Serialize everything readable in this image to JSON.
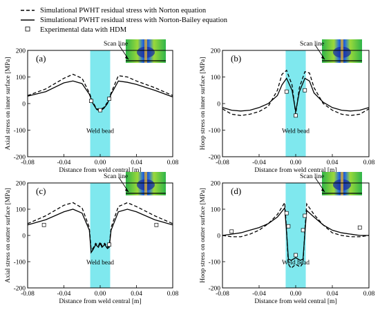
{
  "legend": [
    {
      "label": "Simulational PWHT residual stress with Norton equation",
      "style": "dashed"
    },
    {
      "label": "Simulational PWHT residual stress with Norton-Bailey equation",
      "style": "solid"
    },
    {
      "label": "Experimental data with HDM",
      "style": "marker"
    }
  ],
  "colors": {
    "weld_band": "#7fe8ee",
    "line": "#000000"
  },
  "chart_data": [
    {
      "type": "line",
      "panel": "(a)",
      "xlabel": "Distance from weld central [m]",
      "ylabel": "Axial stress on inner surface [MPa]",
      "xlim": [
        -0.08,
        0.08
      ],
      "ylim": [
        -200,
        200
      ],
      "xticks": [
        "-0.08",
        "-0.04",
        "0.00",
        "0.04",
        "0.08"
      ],
      "yticks": [
        "-200",
        "-100",
        "0",
        "100",
        "200"
      ],
      "weld_band": [
        -0.011,
        0.011
      ],
      "annotations": {
        "band": "Weld bead",
        "inset": "Scan line"
      },
      "series": [
        {
          "style": "dashed",
          "x": [
            -0.08,
            -0.06,
            -0.04,
            -0.03,
            -0.02,
            -0.012,
            -0.008,
            -0.004,
            0.0,
            0.004,
            0.008,
            0.012,
            0.02,
            0.03,
            0.04,
            0.06,
            0.08
          ],
          "y": [
            30,
            55,
            95,
            110,
            95,
            40,
            5,
            -20,
            -22,
            -15,
            5,
            40,
            105,
            100,
            85,
            60,
            30
          ]
        },
        {
          "style": "solid",
          "x": [
            -0.08,
            -0.06,
            -0.04,
            -0.03,
            -0.02,
            -0.012,
            -0.008,
            -0.004,
            0.0,
            0.004,
            0.008,
            0.012,
            0.02,
            0.03,
            0.04,
            0.06,
            0.08
          ],
          "y": [
            28,
            45,
            78,
            85,
            75,
            35,
            0,
            -22,
            -28,
            -18,
            0,
            35,
            85,
            80,
            72,
            50,
            25
          ]
        }
      ],
      "points": {
        "x": [
          -0.01,
          0.0,
          0.01
        ],
        "y": [
          10,
          -25,
          18
        ]
      }
    },
    {
      "type": "line",
      "panel": "(b)",
      "xlabel": "Distance from weld central [m]",
      "ylabel": "Hoop stress on inner surface [MPa]",
      "xlim": [
        -0.08,
        0.08
      ],
      "ylim": [
        -200,
        200
      ],
      "xticks": [
        "-0.08",
        "-0.04",
        "0.00",
        "0.04",
        "0.08"
      ],
      "yticks": [
        "-200",
        "-100",
        "0",
        "100",
        "200"
      ],
      "weld_band": [
        -0.011,
        0.011
      ],
      "annotations": {
        "band": "Weld bead",
        "inset": "Scan line"
      },
      "series": [
        {
          "style": "dashed",
          "x": [
            -0.08,
            -0.07,
            -0.06,
            -0.05,
            -0.04,
            -0.03,
            -0.02,
            -0.015,
            -0.01,
            -0.004,
            0.0,
            0.004,
            0.01,
            0.015,
            0.02,
            0.03,
            0.04,
            0.05,
            0.06,
            0.07,
            0.08
          ],
          "y": [
            -20,
            -40,
            -45,
            -40,
            -30,
            -10,
            50,
            110,
            125,
            70,
            -40,
            60,
            120,
            115,
            60,
            0,
            -25,
            -40,
            -45,
            -40,
            -20
          ]
        },
        {
          "style": "solid",
          "x": [
            -0.08,
            -0.07,
            -0.06,
            -0.05,
            -0.04,
            -0.03,
            -0.02,
            -0.015,
            -0.01,
            -0.004,
            0.0,
            0.004,
            0.01,
            0.015,
            0.02,
            0.03,
            0.04,
            0.05,
            0.06,
            0.07,
            0.08
          ],
          "y": [
            -15,
            -25,
            -28,
            -25,
            -15,
            0,
            30,
            70,
            95,
            50,
            -30,
            45,
            95,
            85,
            40,
            5,
            -15,
            -25,
            -28,
            -25,
            -15
          ]
        }
      ],
      "points": {
        "x": [
          -0.01,
          0.0,
          0.01
        ],
        "y": [
          45,
          -45,
          50
        ]
      }
    },
    {
      "type": "line",
      "panel": "(c)",
      "xlabel": "Distance from weld central [m]",
      "ylabel": "Axial stress on outter surface [MPa]",
      "xlim": [
        -0.08,
        0.08
      ],
      "ylim": [
        -200,
        200
      ],
      "xticks": [
        "-0.08",
        "-0.04",
        "0.00",
        "0.04",
        "0.08"
      ],
      "yticks": [
        "-200",
        "-100",
        "0",
        "100",
        "200"
      ],
      "weld_band": [
        -0.011,
        0.011
      ],
      "annotations": {
        "band": "Weld bead",
        "inset": "Scan line"
      },
      "series": [
        {
          "style": "dashed",
          "x": [
            -0.08,
            -0.06,
            -0.04,
            -0.03,
            -0.02,
            -0.012,
            -0.01,
            -0.008,
            -0.005,
            -0.002,
            0.0,
            0.002,
            0.005,
            0.008,
            0.01,
            0.012,
            0.02,
            0.03,
            0.04,
            0.06,
            0.08
          ],
          "y": [
            45,
            75,
            115,
            125,
            105,
            30,
            -55,
            -50,
            -30,
            -40,
            -25,
            -40,
            -30,
            -45,
            -40,
            30,
            110,
            125,
            110,
            75,
            45
          ]
        },
        {
          "style": "solid",
          "x": [
            -0.08,
            -0.06,
            -0.04,
            -0.03,
            -0.02,
            -0.012,
            -0.01,
            -0.008,
            -0.005,
            -0.002,
            0.0,
            0.002,
            0.005,
            0.008,
            0.01,
            0.012,
            0.02,
            0.03,
            0.04,
            0.06,
            0.08
          ],
          "y": [
            40,
            60,
            90,
            100,
            85,
            20,
            -65,
            -55,
            -35,
            -45,
            -30,
            -45,
            -35,
            -50,
            -45,
            20,
            90,
            100,
            90,
            60,
            40
          ]
        }
      ],
      "points": {
        "x": [
          -0.062,
          0.01,
          0.062
        ],
        "y": [
          40,
          -35,
          40
        ]
      }
    },
    {
      "type": "line",
      "panel": "(d)",
      "xlabel": "Distance from weld central [m]",
      "ylabel": "Hoop stress on outter surface [MPa]",
      "xlim": [
        -0.08,
        0.08
      ],
      "ylim": [
        -200,
        200
      ],
      "xticks": [
        "-0.08",
        "-0.04",
        "0.00",
        "0.04",
        "0.08"
      ],
      "yticks": [
        "-200",
        "-100",
        "0",
        "100",
        "200"
      ],
      "weld_band": [
        -0.011,
        0.011
      ],
      "annotations": {
        "band": "Weld bead",
        "inset": "Scan line"
      },
      "series": [
        {
          "style": "dashed",
          "x": [
            -0.08,
            -0.07,
            -0.06,
            -0.05,
            -0.04,
            -0.03,
            -0.02,
            -0.012,
            -0.01,
            -0.008,
            -0.005,
            0.0,
            0.005,
            0.008,
            0.01,
            0.012,
            0.02,
            0.03,
            0.04,
            0.05,
            0.06,
            0.07,
            0.08
          ],
          "y": [
            0,
            -5,
            -5,
            5,
            20,
            45,
            80,
            125,
            20,
            -110,
            -125,
            -110,
            -120,
            -105,
            20,
            120,
            80,
            40,
            10,
            0,
            -5,
            -5,
            0
          ]
        },
        {
          "style": "solid",
          "x": [
            -0.08,
            -0.07,
            -0.06,
            -0.05,
            -0.04,
            -0.03,
            -0.02,
            -0.012,
            -0.01,
            -0.008,
            -0.005,
            0.0,
            0.005,
            0.008,
            0.01,
            0.012,
            0.02,
            0.03,
            0.04,
            0.05,
            0.06,
            0.07,
            0.08
          ],
          "y": [
            0,
            5,
            10,
            20,
            30,
            45,
            70,
            105,
            10,
            -90,
            -95,
            -85,
            -95,
            -90,
            10,
            95,
            70,
            40,
            20,
            10,
            5,
            0,
            0
          ]
        }
      ],
      "points": {
        "x": [
          -0.07,
          -0.01,
          -0.008,
          0.0,
          0.008,
          0.01,
          0.07
        ],
        "y": [
          15,
          85,
          35,
          -75,
          20,
          75,
          30
        ]
      }
    }
  ]
}
